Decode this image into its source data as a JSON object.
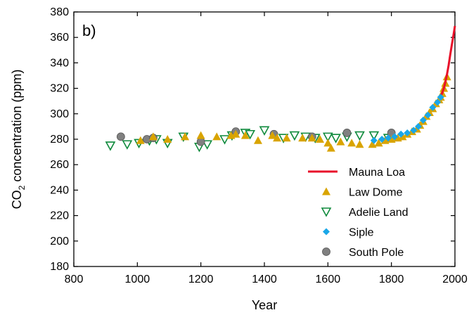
{
  "chart_data": {
    "type": "scatter",
    "panel_label": "b)",
    "xlabel": "Year",
    "ylabel_main": "CO",
    "ylabel_sub": "2",
    "ylabel_rest": " concentration (ppm)",
    "xlim": [
      800,
      2000
    ],
    "ylim": [
      180,
      380
    ],
    "xticks": [
      800,
      1000,
      1200,
      1400,
      1600,
      1800,
      2000
    ],
    "yticks": [
      180,
      200,
      220,
      240,
      260,
      280,
      300,
      320,
      340,
      360,
      380
    ],
    "legend_position": "lower-right",
    "series": [
      {
        "name": "Mauna Loa",
        "marker": "line",
        "color": "#e8102a",
        "points": [
          [
            1958,
            315
          ],
          [
            1965,
            320
          ],
          [
            1970,
            325
          ],
          [
            1975,
            331
          ],
          [
            1980,
            338
          ],
          [
            1985,
            346
          ],
          [
            1990,
            354
          ],
          [
            1995,
            361
          ],
          [
            2000,
            369
          ]
        ]
      },
      {
        "name": "Law Dome",
        "marker": "triangle-up",
        "color": "#d9a400",
        "points": [
          [
            1010,
            279
          ],
          [
            1050,
            282
          ],
          [
            1095,
            280
          ],
          [
            1150,
            282
          ],
          [
            1200,
            283
          ],
          [
            1250,
            282
          ],
          [
            1295,
            283
          ],
          [
            1310,
            284
          ],
          [
            1340,
            283
          ],
          [
            1380,
            279
          ],
          [
            1425,
            283
          ],
          [
            1440,
            281
          ],
          [
            1470,
            281
          ],
          [
            1520,
            281
          ],
          [
            1550,
            281
          ],
          [
            1575,
            280
          ],
          [
            1600,
            277
          ],
          [
            1610,
            273
          ],
          [
            1640,
            278
          ],
          [
            1675,
            277
          ],
          [
            1700,
            276
          ],
          [
            1740,
            276
          ],
          [
            1760,
            277
          ],
          [
            1780,
            279
          ],
          [
            1800,
            280
          ],
          [
            1820,
            281
          ],
          [
            1835,
            282
          ],
          [
            1850,
            284
          ],
          [
            1865,
            286
          ],
          [
            1880,
            288
          ],
          [
            1890,
            291
          ],
          [
            1900,
            294
          ],
          [
            1910,
            298
          ],
          [
            1920,
            301
          ],
          [
            1930,
            304
          ],
          [
            1940,
            308
          ],
          [
            1950,
            311
          ],
          [
            1955,
            313
          ],
          [
            1960,
            316
          ],
          [
            1965,
            320
          ],
          [
            1970,
            324
          ],
          [
            1975,
            329
          ]
        ]
      },
      {
        "name": "Adelie Land",
        "marker": "triangle-down",
        "color": "#0f8a3c",
        "points": [
          [
            915,
            275
          ],
          [
            968,
            276
          ],
          [
            1005,
            277
          ],
          [
            1038,
            279
          ],
          [
            1060,
            280
          ],
          [
            1095,
            277
          ],
          [
            1145,
            282
          ],
          [
            1195,
            274
          ],
          [
            1220,
            276
          ],
          [
            1275,
            280
          ],
          [
            1298,
            283
          ],
          [
            1340,
            285
          ],
          [
            1355,
            284
          ],
          [
            1400,
            287
          ],
          [
            1460,
            281
          ],
          [
            1495,
            283
          ],
          [
            1530,
            282
          ],
          [
            1560,
            281
          ],
          [
            1600,
            282
          ],
          [
            1625,
            281
          ],
          [
            1660,
            282
          ],
          [
            1700,
            283
          ],
          [
            1745,
            283
          ],
          [
            1790,
            281
          ]
        ]
      },
      {
        "name": "Siple",
        "marker": "diamond",
        "color": "#1aa7e8",
        "points": [
          [
            1745,
            279
          ],
          [
            1770,
            280
          ],
          [
            1790,
            281
          ],
          [
            1810,
            282
          ],
          [
            1830,
            284
          ],
          [
            1850,
            285
          ],
          [
            1870,
            287
          ],
          [
            1885,
            290
          ],
          [
            1900,
            295
          ],
          [
            1915,
            299
          ],
          [
            1930,
            305
          ],
          [
            1945,
            309
          ],
          [
            1955,
            313
          ]
        ]
      },
      {
        "name": "South Pole",
        "marker": "circle",
        "color": "#808080",
        "points": [
          [
            948,
            282
          ],
          [
            1030,
            280
          ],
          [
            1050,
            281
          ],
          [
            1200,
            278
          ],
          [
            1310,
            286
          ],
          [
            1430,
            284
          ],
          [
            1550,
            282
          ],
          [
            1660,
            285
          ],
          [
            1800,
            285
          ]
        ]
      }
    ]
  }
}
